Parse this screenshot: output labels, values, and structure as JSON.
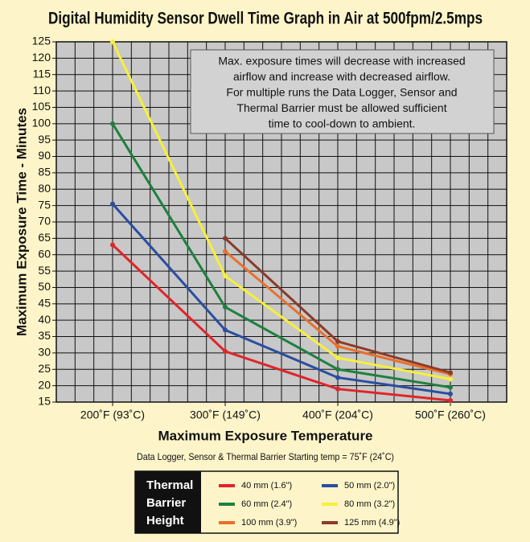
{
  "chart_data": {
    "type": "line",
    "title": "Digital Humidity Sensor Dwell Time Graph in Air at 500fpm/2.5mps",
    "x_label": "Maximum Exposure Temperature",
    "y_label": "Maximum Exposure Time - Minutes",
    "subtitle": "Data Logger, Sensor & Thermal Barrier Starting temp = 75˚F (24˚C)",
    "annotation": [
      "Max. exposure times will decrease with increased",
      "airflow and increase with decreased airflow.",
      "For multiple runs the Data Logger, Sensor and",
      "Thermal Barrier must be allowed sufficient",
      "time to cool-down to ambient."
    ],
    "legend_title": [
      "Thermal",
      "Barrier",
      "Height"
    ],
    "categories": [
      "200˚F (93˚C)",
      "300˚F (149˚C)",
      "400˚F (204˚C)",
      "500˚F (260˚C)"
    ],
    "ylim": [
      15,
      125
    ],
    "yticks": [
      15,
      20,
      25,
      30,
      35,
      40,
      45,
      50,
      55,
      60,
      65,
      70,
      75,
      80,
      85,
      90,
      95,
      100,
      105,
      110,
      115,
      120,
      125
    ],
    "grid": true,
    "series": [
      {
        "name": "40 mm (1.6\")",
        "color": "#e0252b",
        "values": [
          63,
          30.5,
          19,
          15.5
        ]
      },
      {
        "name": "50 mm (2.0\")",
        "color": "#2a4ea0",
        "values": [
          75.5,
          37,
          22.5,
          17.5
        ]
      },
      {
        "name": "60 mm (2.4\")",
        "color": "#1e8040",
        "values": [
          100,
          44,
          25,
          19.5
        ]
      },
      {
        "name": "80 mm (3.2\")",
        "color": "#f6f03a",
        "values": [
          125,
          53.5,
          28.5,
          22
        ]
      },
      {
        "name": "100 mm (3.9\")",
        "color": "#e8702a",
        "values": [
          null,
          61,
          32,
          23.5
        ]
      },
      {
        "name": "125 mm (4.9\")",
        "color": "#8c3a2a",
        "values": [
          null,
          65,
          33.5,
          24
        ]
      }
    ]
  }
}
